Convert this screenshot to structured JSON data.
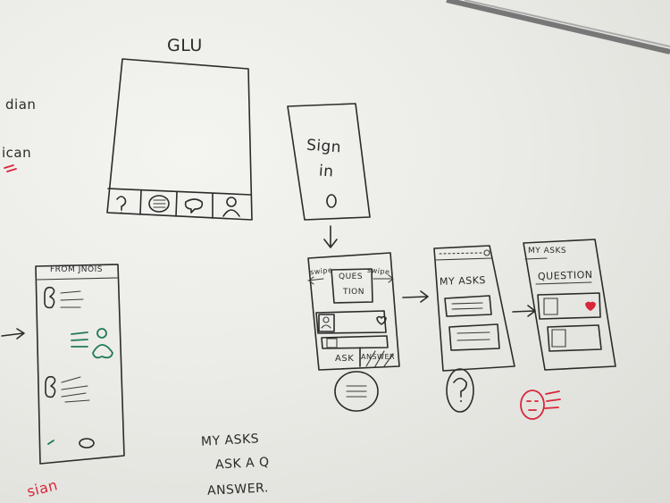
{
  "board": {
    "edge_left": [
      "dian",
      "ican"
    ],
    "glu_title": "GLU",
    "sign_in": [
      "Sign",
      "in"
    ],
    "swipe_left": "swipe",
    "swipe_right": "swipe",
    "question_card": [
      "QUES",
      "TION"
    ],
    "ask_tab": "ASK",
    "answer_tab": "ANSWER",
    "my_asks_screen_title": "MY ASKS",
    "detail_header": "MY ASKS",
    "detail_question": "QUESTION",
    "chat_header": "FROM JNOIS",
    "notes": [
      "MY ASKS",
      "ASK A Q",
      "ANSWER."
    ],
    "bottom_red": "sian"
  },
  "colors": {
    "board": "#ecece8",
    "ink": "#2b2b2b",
    "red": "#d8263a",
    "green": "#1f7a5a"
  },
  "icons": [
    "question-icon",
    "list-icon",
    "chat-icon",
    "person-icon",
    "heart-icon",
    "arrow-right-icon",
    "arrow-down-icon"
  ]
}
